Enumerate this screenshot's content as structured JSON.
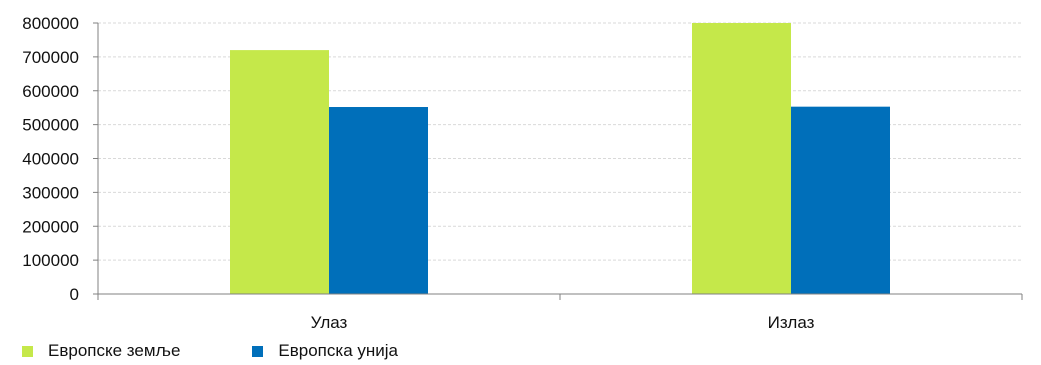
{
  "chart_data": {
    "type": "bar",
    "categories": [
      "Улаз",
      "Излаз"
    ],
    "series": [
      {
        "name": "Европске земље",
        "color": "#c5e84a",
        "values": [
          720000,
          800000
        ]
      },
      {
        "name": "Европска унија",
        "color": "#006fba",
        "values": [
          552000,
          553000
        ]
      }
    ],
    "ylim": [
      0,
      800000
    ],
    "yticks": [
      "0",
      "100000",
      "200000",
      "300000",
      "400000",
      "500000",
      "600000",
      "700000",
      "800000"
    ],
    "grid": true,
    "legend_position": "bottom-left",
    "title": "",
    "xlabel": "",
    "ylabel": ""
  }
}
